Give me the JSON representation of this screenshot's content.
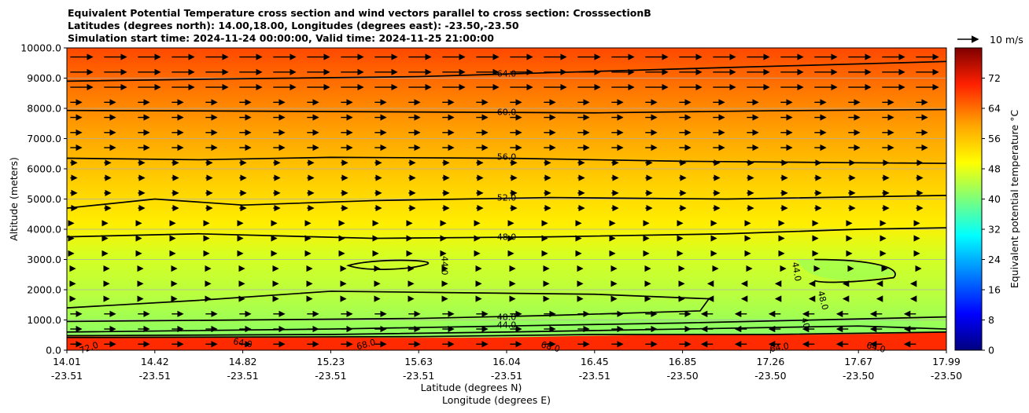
{
  "chart_data": {
    "type": "heatmap",
    "title": [
      "Equivalent Potential Temperature cross section and wind vectors parallel to cross section: CrosssectionB",
      "Latitudes (degrees north): 14.00,18.00, Longitudes (degrees east): -23.50,-23.50",
      "Simulation start time: 2024-11-24 00:00:00, Valid time: 2024-11-25 21:00:00"
    ],
    "ylabel": "Altitude (meters)",
    "xlabel": "Latitude (degrees N)",
    "xlabel2": "Longitude (degrees E)",
    "ylim": [
      0,
      10000
    ],
    "y_ticks": [
      "0.0",
      "1000.0",
      "2000.0",
      "3000.0",
      "4000.0",
      "5000.0",
      "6000.0",
      "7000.0",
      "8000.0",
      "9000.0",
      "10000.0"
    ],
    "x_ticks_lat": [
      "14.01",
      "14.42",
      "14.82",
      "15.23",
      "15.63",
      "16.04",
      "16.45",
      "16.85",
      "17.26",
      "17.67",
      "17.99"
    ],
    "x_ticks_lon": [
      "-23.51",
      "-23.51",
      "-23.51",
      "-23.51",
      "-23.51",
      "-23.51",
      "-23.51",
      "-23.50",
      "-23.50",
      "-23.50",
      "-23.50"
    ],
    "colorbar": {
      "label": "Equivalent potential temperature °C",
      "ticks": [
        "0",
        "8",
        "16",
        "24",
        "32",
        "40",
        "48",
        "56",
        "64",
        "72"
      ],
      "range": [
        0,
        80
      ]
    },
    "quiver_key": "10 m/s",
    "contour_labels": [
      {
        "text": "64.0",
        "x_frac": 0.5,
        "alt": 9150,
        "angle": 0
      },
      {
        "text": "60.0",
        "x_frac": 0.5,
        "alt": 7880,
        "angle": 0
      },
      {
        "text": "56.0",
        "x_frac": 0.5,
        "alt": 6400,
        "angle": 0
      },
      {
        "text": "52.0",
        "x_frac": 0.5,
        "alt": 5050,
        "angle": 0
      },
      {
        "text": "48.0",
        "x_frac": 0.5,
        "alt": 3750,
        "angle": 0
      },
      {
        "text": "44.0",
        "x_frac": 0.43,
        "alt": 2800,
        "angle": 90
      },
      {
        "text": "44.0",
        "x_frac": 0.83,
        "alt": 2600,
        "angle": 80
      },
      {
        "text": "48.0",
        "x_frac": 0.86,
        "alt": 1650,
        "angle": 75
      },
      {
        "text": "48.0",
        "x_frac": 0.5,
        "alt": 1100,
        "angle": 0
      },
      {
        "text": "44.0",
        "x_frac": 0.5,
        "alt": 850,
        "angle": 0
      },
      {
        "text": "40",
        "x_frac": 0.84,
        "alt": 900,
        "angle": 75
      },
      {
        "text": "72.0",
        "x_frac": 0.025,
        "alt": 90,
        "angle": -20
      },
      {
        "text": "64.0",
        "x_frac": 0.2,
        "alt": 250,
        "angle": 10
      },
      {
        "text": "68.0",
        "x_frac": 0.34,
        "alt": 200,
        "angle": -15
      },
      {
        "text": "68.0",
        "x_frac": 0.55,
        "alt": 120,
        "angle": 15
      },
      {
        "text": "64.0",
        "x_frac": 0.81,
        "alt": 100,
        "angle": -10
      },
      {
        "text": "64.0",
        "x_frac": 0.92,
        "alt": 100,
        "angle": 15
      }
    ]
  }
}
